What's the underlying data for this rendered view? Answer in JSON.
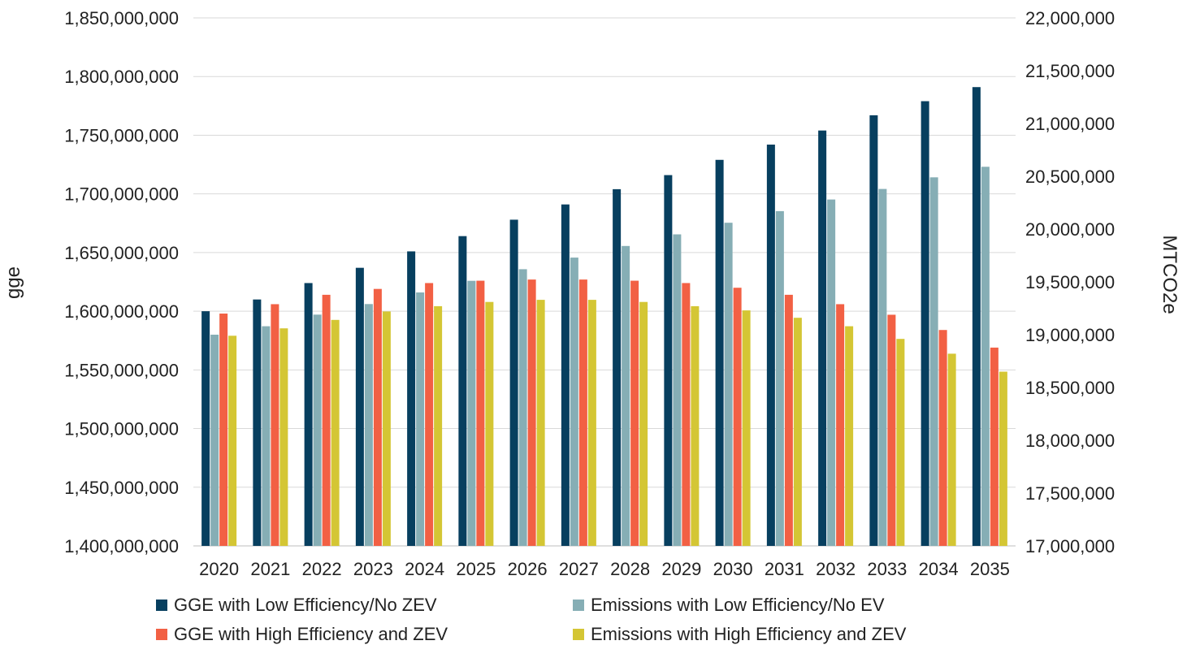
{
  "chart_data": {
    "type": "bar",
    "categories": [
      "2020",
      "2021",
      "2022",
      "2023",
      "2024",
      "2025",
      "2026",
      "2027",
      "2028",
      "2029",
      "2030",
      "2031",
      "2032",
      "2033",
      "2034",
      "2035"
    ],
    "series": [
      {
        "name": "GGE with Low Efficiency/No ZEV",
        "axis": "left",
        "color": "#073f5f",
        "values": [
          1600000000,
          1610000000,
          1624000000,
          1637000000,
          1651000000,
          1664000000,
          1678000000,
          1691000000,
          1704000000,
          1716000000,
          1729000000,
          1742000000,
          1754000000,
          1767000000,
          1779000000,
          1791000000
        ]
      },
      {
        "name": "Emissions with Low Efficiency/No EV",
        "axis": "right",
        "color": "#86aeb5",
        "values": [
          19000000,
          19080000,
          19190000,
          19290000,
          19400000,
          19510000,
          19620000,
          19730000,
          19840000,
          19950000,
          20060000,
          20170000,
          20280000,
          20380000,
          20490000,
          20590000
        ]
      },
      {
        "name": "GGE with High Efficiency and ZEV",
        "axis": "left",
        "color": "#f26044",
        "values": [
          1598000000,
          1606000000,
          1614000000,
          1619000000,
          1624000000,
          1626000000,
          1627000000,
          1627000000,
          1626000000,
          1624000000,
          1620000000,
          1614000000,
          1606000000,
          1597000000,
          1584000000,
          1569000000
        ]
      },
      {
        "name": "Emissions with High Efficiency and ZEV",
        "axis": "right",
        "color": "#d4c634",
        "values": [
          18990000,
          19060000,
          19140000,
          19220000,
          19270000,
          19310000,
          19330000,
          19330000,
          19310000,
          19270000,
          19230000,
          19160000,
          19080000,
          18960000,
          18820000,
          18650000
        ]
      }
    ],
    "ylabel": "gge",
    "y2label": "MTCO2e",
    "ylim": [
      1400000000,
      1850000000
    ],
    "y2lim": [
      17000000,
      22000000
    ],
    "yticks": [
      "1,400,000,000",
      "1,450,000,000",
      "1,500,000,000",
      "1,550,000,000",
      "1,600,000,000",
      "1,650,000,000",
      "1,700,000,000",
      "1,750,000,000",
      "1,800,000,000",
      "1,850,000,000"
    ],
    "y2ticks": [
      "17,000,000",
      "17,500,000",
      "18,000,000",
      "18,500,000",
      "19,000,000",
      "19,500,000",
      "20,000,000",
      "20,500,000",
      "21,000,000",
      "21,500,000",
      "22,000,000"
    ],
    "grid": true,
    "legend_position": "bottom"
  }
}
